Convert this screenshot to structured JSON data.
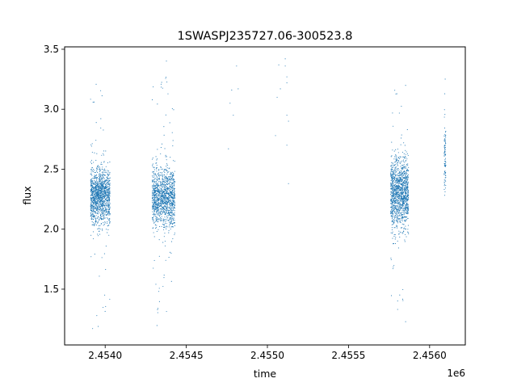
{
  "chart_data": {
    "type": "scatter",
    "title": "1SWASPJ235727.06-300523.8",
    "xlabel": "time",
    "ylabel": "flux",
    "x_offset_label": "1e6",
    "xlim": [
      2.45375,
      2.45622
    ],
    "ylim": [
      1.035,
      3.52
    ],
    "x_ticks": [
      {
        "value": 2.454,
        "label": "2.4540"
      },
      {
        "value": 2.4545,
        "label": "2.4545"
      },
      {
        "value": 2.455,
        "label": "2.4550"
      },
      {
        "value": 2.4555,
        "label": "2.4555"
      },
      {
        "value": 2.456,
        "label": "2.4560"
      }
    ],
    "y_ticks": [
      {
        "value": 1.5,
        "label": "1.5"
      },
      {
        "value": 2.0,
        "label": "2.0"
      },
      {
        "value": 2.5,
        "label": "2.5"
      },
      {
        "value": 3.0,
        "label": "3.0"
      },
      {
        "value": 3.5,
        "label": "3.5"
      }
    ],
    "grid": false,
    "legend": "none",
    "marker_color": "#1f77b4",
    "series": [
      {
        "clusters": [
          {
            "x_start": 2.45391,
            "x_end": 2.45403,
            "y_center": 2.28,
            "y_spread": 0.12,
            "count": 1300,
            "outlier_min": 1.15,
            "outlier_max": 3.38
          },
          {
            "x_start": 2.45429,
            "x_end": 2.45443,
            "y_center": 2.26,
            "y_spread": 0.12,
            "count": 1300,
            "outlier_min": 1.17,
            "outlier_max": 3.44
          },
          {
            "x_start": 2.45576,
            "x_end": 2.45587,
            "y_center": 2.3,
            "y_spread": 0.15,
            "count": 1300,
            "outlier_min": 1.2,
            "outlier_max": 3.27
          },
          {
            "x_start": 2.45609,
            "x_end": 2.4561,
            "y_center": 2.55,
            "y_spread": 0.15,
            "count": 90,
            "outlier_min": 2.2,
            "outlier_max": 3.3
          }
        ],
        "sparse_points": [
          [
            2.45476,
            2.67
          ],
          [
            2.45477,
            3.05
          ],
          [
            2.45478,
            3.16
          ],
          [
            2.45479,
            2.95
          ],
          [
            2.45481,
            3.36
          ],
          [
            2.45482,
            3.17
          ],
          [
            2.45505,
            2.78
          ],
          [
            2.45506,
            3.1
          ],
          [
            2.45507,
            3.37
          ],
          [
            2.45508,
            3.17
          ],
          [
            2.45511,
            3.42
          ],
          [
            2.45512,
            3.27
          ],
          [
            2.45512,
            3.22
          ],
          [
            2.45513,
            2.9
          ],
          [
            2.45513,
            2.38
          ],
          [
            2.45512,
            2.7
          ],
          [
            2.45511,
            3.36
          ],
          [
            2.45512,
            2.95
          ]
        ]
      }
    ]
  }
}
